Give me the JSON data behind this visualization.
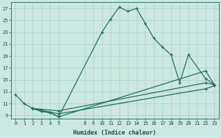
{
  "xlabel": "Humidex (Indice chaleur)",
  "bg_color": "#cce8e0",
  "grid_color": "#aacccc",
  "line_color": "#1a6e60",
  "xlim": [
    -0.5,
    23.5
  ],
  "ylim": [
    8.5,
    28.0
  ],
  "xticks": [
    0,
    1,
    2,
    3,
    4,
    5,
    8,
    9,
    10,
    11,
    12,
    13,
    14,
    15,
    16,
    17,
    18,
    19,
    20,
    21,
    22,
    23
  ],
  "yticks": [
    9,
    11,
    13,
    15,
    17,
    19,
    21,
    23,
    25,
    27
  ],
  "lines": [
    {
      "x": [
        0,
        1,
        2,
        3,
        4,
        5,
        10,
        11,
        12,
        13,
        14,
        15,
        16,
        17,
        18,
        19,
        20,
        22,
        23
      ],
      "y": [
        12.5,
        11.0,
        10.2,
        9.7,
        9.5,
        8.8,
        23.0,
        25.2,
        27.2,
        26.5,
        27.0,
        24.5,
        22.0,
        20.5,
        19.2,
        14.5,
        19.2,
        15.2,
        14.2
      ]
    },
    {
      "x": [
        2,
        3,
        4,
        5,
        22,
        23
      ],
      "y": [
        10.2,
        9.7,
        9.5,
        8.8,
        16.5,
        14.2
      ]
    },
    {
      "x": [
        2,
        5,
        22,
        23
      ],
      "y": [
        10.2,
        9.8,
        14.5,
        14.2
      ]
    },
    {
      "x": [
        2,
        5,
        22,
        23
      ],
      "y": [
        10.2,
        9.3,
        13.5,
        14.0
      ]
    }
  ]
}
